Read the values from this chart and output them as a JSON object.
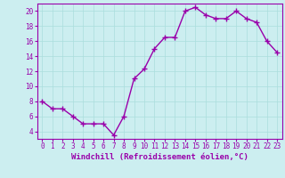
{
  "x": [
    0,
    1,
    2,
    3,
    4,
    5,
    6,
    7,
    8,
    9,
    10,
    11,
    12,
    13,
    14,
    15,
    16,
    17,
    18,
    19,
    20,
    21,
    22,
    23
  ],
  "y": [
    8,
    7,
    7,
    6,
    5,
    5,
    5,
    3.5,
    6,
    11,
    12.3,
    15,
    16.5,
    16.5,
    20,
    20.5,
    19.5,
    19,
    19,
    20,
    19,
    18.5,
    16,
    14.5
  ],
  "line_color": "#9900aa",
  "marker": "+",
  "marker_size": 4,
  "background_color": "#cceef0",
  "grid_color": "#aadddd",
  "xlabel": "Windchill (Refroidissement éolien,°C)",
  "xlabel_fontsize": 6.5,
  "ylim": [
    3,
    21
  ],
  "xlim": [
    -0.5,
    23.5
  ],
  "yticks": [
    4,
    6,
    8,
    10,
    12,
    14,
    16,
    18,
    20
  ],
  "xticks": [
    0,
    1,
    2,
    3,
    4,
    5,
    6,
    7,
    8,
    9,
    10,
    11,
    12,
    13,
    14,
    15,
    16,
    17,
    18,
    19,
    20,
    21,
    22,
    23
  ],
  "tick_fontsize": 5.5,
  "line_width": 1.0,
  "marker_edge_width": 1.0
}
